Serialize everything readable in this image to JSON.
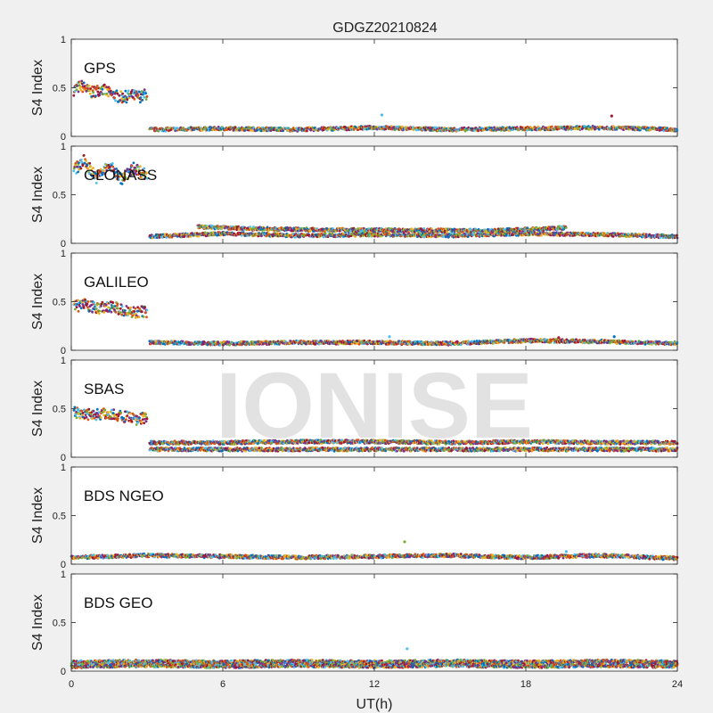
{
  "chart_data": {
    "type": "scatter",
    "title": "GDGZ20210824",
    "xlabel": "UT(h)",
    "ylabel": "S4 Index",
    "xlim": [
      0,
      24
    ],
    "ylim": [
      0,
      1
    ],
    "xticks": [
      0,
      6,
      12,
      18,
      24
    ],
    "xtick_labels": [
      "0",
      "6",
      "12",
      "18",
      "24"
    ],
    "yticks": [
      0,
      0.5,
      1
    ],
    "ytick_labels": [
      "0",
      "0.5",
      "1"
    ],
    "watermark": "IONISE",
    "watermark_panel": 3,
    "grid": false,
    "colors": [
      "#0072BD",
      "#D95319",
      "#EDB120",
      "#7E2F8E",
      "#77AC30",
      "#4DBEEE",
      "#A2142F"
    ],
    "panels": [
      {
        "label": "GPS",
        "series": [
          {
            "x": [
              0.1,
              0.4,
              0.8,
              1.2,
              1.6,
              2.0,
              2.4,
              2.8,
              3.0
            ],
            "y": [
              0.48,
              0.52,
              0.45,
              0.49,
              0.43,
              0.4,
              0.42,
              0.41,
              0.44
            ]
          },
          {
            "x": [
              3.1,
              6,
              9,
              12,
              15,
              18,
              21,
              24
            ],
            "y": [
              0.07,
              0.08,
              0.07,
              0.09,
              0.07,
              0.08,
              0.09,
              0.07
            ]
          },
          {
            "x": [
              12.3,
              21.4
            ],
            "y": [
              0.22,
              0.21
            ]
          }
        ]
      },
      {
        "label": "GLONASS",
        "series": [
          {
            "x": [
              0.1,
              0.5,
              1.0,
              1.5,
              2.0,
              2.5,
              3.0
            ],
            "y": [
              0.75,
              0.85,
              0.68,
              0.8,
              0.66,
              0.78,
              0.7
            ]
          },
          {
            "x": [
              3.1,
              6,
              9,
              12,
              15,
              18,
              21,
              24
            ],
            "y": [
              0.07,
              0.1,
              0.08,
              0.09,
              0.08,
              0.1,
              0.09,
              0.07
            ]
          },
          {
            "x": [
              5.0,
              7.3,
              9.8,
              16.8,
              19.6
            ],
            "y": [
              0.17,
              0.15,
              0.14,
              0.13,
              0.16
            ]
          }
        ]
      },
      {
        "label": "GALILEO",
        "series": [
          {
            "x": [
              0.1,
              0.5,
              1.0,
              1.5,
              2.0,
              2.5,
              3.0
            ],
            "y": [
              0.45,
              0.47,
              0.43,
              0.46,
              0.41,
              0.39,
              0.4
            ]
          },
          {
            "x": [
              3.1,
              6,
              9,
              12,
              15,
              18,
              21,
              24
            ],
            "y": [
              0.08,
              0.07,
              0.08,
              0.08,
              0.07,
              0.1,
              0.09,
              0.07
            ]
          },
          {
            "x": [
              12.6,
              19.3,
              21.5
            ],
            "y": [
              0.14,
              0.13,
              0.14
            ]
          }
        ]
      },
      {
        "label": "SBAS",
        "series": [
          {
            "x": [
              0.1,
              0.5,
              1.0,
              1.5,
              2.0,
              2.5,
              3.0
            ],
            "y": [
              0.47,
              0.45,
              0.44,
              0.45,
              0.42,
              0.39,
              0.4
            ]
          },
          {
            "x": [
              3.1,
              6,
              9,
              12,
              15,
              18,
              21,
              24
            ],
            "y": [
              0.15,
              0.15,
              0.16,
              0.16,
              0.15,
              0.16,
              0.15,
              0.15
            ]
          },
          {
            "x": [
              3.1,
              6,
              9,
              12,
              15,
              18,
              21,
              24
            ],
            "y": [
              0.08,
              0.08,
              0.08,
              0.08,
              0.08,
              0.08,
              0.08,
              0.08
            ]
          }
        ]
      },
      {
        "label": "BDS NGEO",
        "series": [
          {
            "x": [
              0,
              3,
              6,
              9,
              12,
              15,
              18,
              21,
              24
            ],
            "y": [
              0.07,
              0.09,
              0.08,
              0.07,
              0.08,
              0.09,
              0.07,
              0.09,
              0.06
            ]
          },
          {
            "x": [
              13.2,
              19.6
            ],
            "y": [
              0.23,
              0.13
            ]
          }
        ]
      },
      {
        "label": "BDS GEO",
        "series": [
          {
            "x": [
              0,
              3,
              6,
              9,
              12,
              15,
              18,
              21,
              24
            ],
            "y": [
              0.09,
              0.1,
              0.09,
              0.1,
              0.09,
              0.1,
              0.09,
              0.1,
              0.09
            ]
          },
          {
            "x": [
              0,
              3,
              6,
              9,
              12,
              15,
              18,
              21,
              24
            ],
            "y": [
              0.05,
              0.06,
              0.05,
              0.06,
              0.05,
              0.06,
              0.05,
              0.06,
              0.05
            ]
          },
          {
            "x": [
              13.3
            ],
            "y": [
              0.23
            ]
          }
        ]
      }
    ]
  }
}
